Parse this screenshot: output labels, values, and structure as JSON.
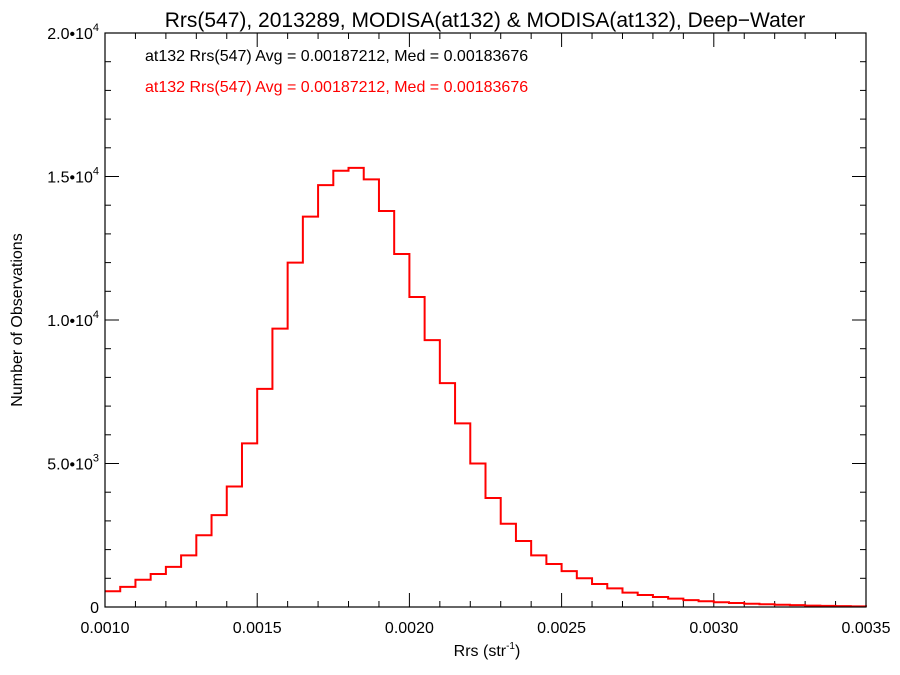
{
  "chart_data": {
    "type": "line",
    "title": "Rrs(547), 2013289, MODISA(at132) & MODISA(at132), Deep−Water",
    "xlabel": "Rrs (str",
    "xlabel_sup": "-1",
    "xlabel_end": ")",
    "ylabel": "Number of Observations",
    "xlim": [
      0.001,
      0.0035
    ],
    "ylim": [
      0,
      20000
    ],
    "x_ticks": [
      {
        "value": 0.001,
        "label": "0.0010"
      },
      {
        "value": 0.0015,
        "label": "0.0015"
      },
      {
        "value": 0.002,
        "label": "0.0020"
      },
      {
        "value": 0.0025,
        "label": "0.0025"
      },
      {
        "value": 0.003,
        "label": "0.0030"
      },
      {
        "value": 0.0035,
        "label": "0.0035"
      }
    ],
    "y_ticks": [
      {
        "value": 0,
        "mant": "0",
        "exp": ""
      },
      {
        "value": 5000,
        "mant": "5.0•10",
        "exp": "3"
      },
      {
        "value": 10000,
        "mant": "1.0•10",
        "exp": "4"
      },
      {
        "value": 15000,
        "mant": "1.5•10",
        "exp": "4"
      },
      {
        "value": 20000,
        "mant": "2.0•10",
        "exp": "4"
      }
    ],
    "annotations": [
      {
        "text": "at132 Rrs(547) Avg = 0.00187212, Med = 0.00183676",
        "color": "#000000"
      },
      {
        "text": "at132 Rrs(547) Avg = 0.00187212, Med = 0.00183676",
        "color": "#ff0000"
      }
    ],
    "series": [
      {
        "color": "#ff0000",
        "step": true,
        "points": [
          [
            0.001,
            550
          ],
          [
            0.00105,
            700
          ],
          [
            0.0011,
            950
          ],
          [
            0.00115,
            1150
          ],
          [
            0.0012,
            1400
          ],
          [
            0.00125,
            1800
          ],
          [
            0.0013,
            2500
          ],
          [
            0.00135,
            3200
          ],
          [
            0.0014,
            4200
          ],
          [
            0.00145,
            5700
          ],
          [
            0.0015,
            7600
          ],
          [
            0.00155,
            9700
          ],
          [
            0.0016,
            12000
          ],
          [
            0.00165,
            13600
          ],
          [
            0.0017,
            14700
          ],
          [
            0.00175,
            15200
          ],
          [
            0.0018,
            15300
          ],
          [
            0.00185,
            14900
          ],
          [
            0.0019,
            13800
          ],
          [
            0.00195,
            12300
          ],
          [
            0.002,
            10800
          ],
          [
            0.00205,
            9300
          ],
          [
            0.0021,
            7800
          ],
          [
            0.00215,
            6400
          ],
          [
            0.0022,
            5000
          ],
          [
            0.00225,
            3800
          ],
          [
            0.0023,
            2900
          ],
          [
            0.00235,
            2300
          ],
          [
            0.0024,
            1800
          ],
          [
            0.00245,
            1500
          ],
          [
            0.0025,
            1250
          ],
          [
            0.00255,
            1000
          ],
          [
            0.0026,
            800
          ],
          [
            0.00265,
            650
          ],
          [
            0.0027,
            500
          ],
          [
            0.00275,
            420
          ],
          [
            0.0028,
            350
          ],
          [
            0.00285,
            290
          ],
          [
            0.0029,
            240
          ],
          [
            0.00295,
            200
          ],
          [
            0.003,
            165
          ],
          [
            0.00305,
            140
          ],
          [
            0.0031,
            115
          ],
          [
            0.00315,
            95
          ],
          [
            0.0032,
            80
          ],
          [
            0.00325,
            65
          ],
          [
            0.0033,
            50
          ],
          [
            0.00335,
            40
          ],
          [
            0.0034,
            30
          ],
          [
            0.00345,
            20
          ],
          [
            0.0035,
            10
          ]
        ]
      }
    ]
  }
}
